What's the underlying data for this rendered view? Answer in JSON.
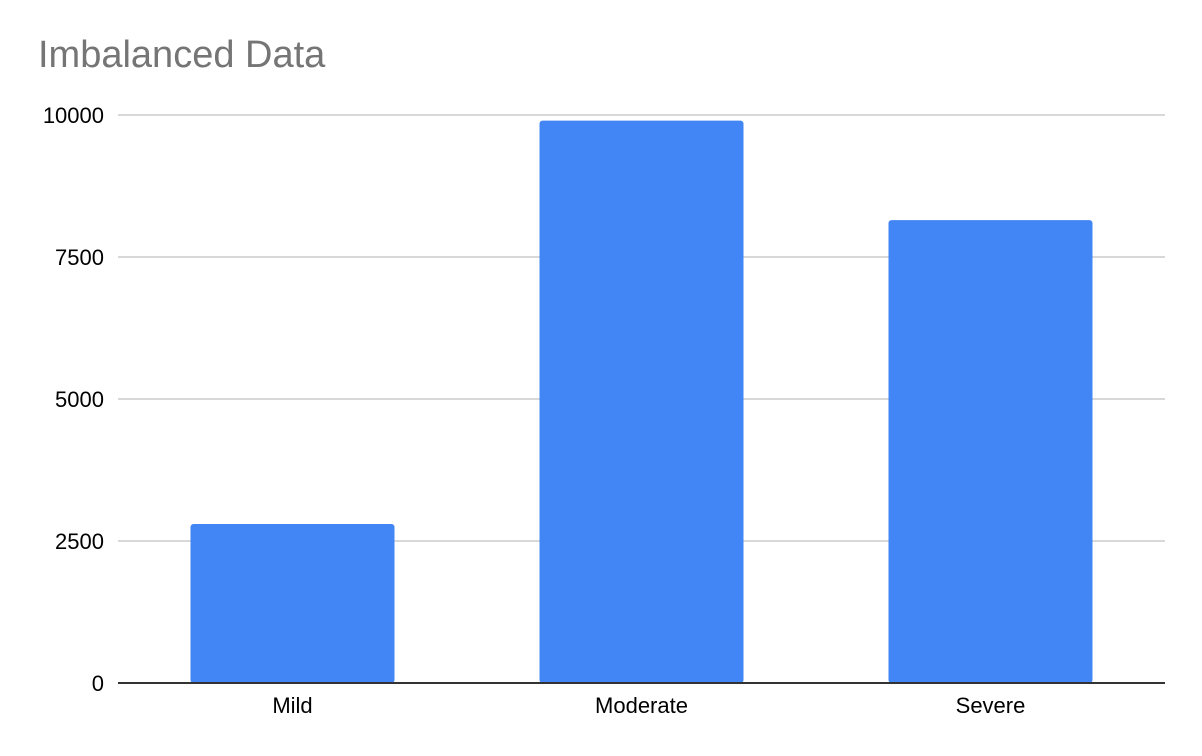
{
  "chart_data": {
    "type": "bar",
    "title": "Imbalanced Data",
    "xlabel": "",
    "ylabel": "",
    "categories": [
      "Mild",
      "Moderate",
      "Severe"
    ],
    "values": [
      2800,
      9900,
      8150
    ],
    "ylim": [
      0,
      10000
    ],
    "yticks": [
      "0",
      "2500",
      "5000",
      "7500",
      "10000"
    ],
    "grid": true,
    "legend": "none",
    "colors": {
      "bar": "#4285f4",
      "grid": "#cccccc",
      "axis": "#333333",
      "title": "#757575"
    }
  }
}
